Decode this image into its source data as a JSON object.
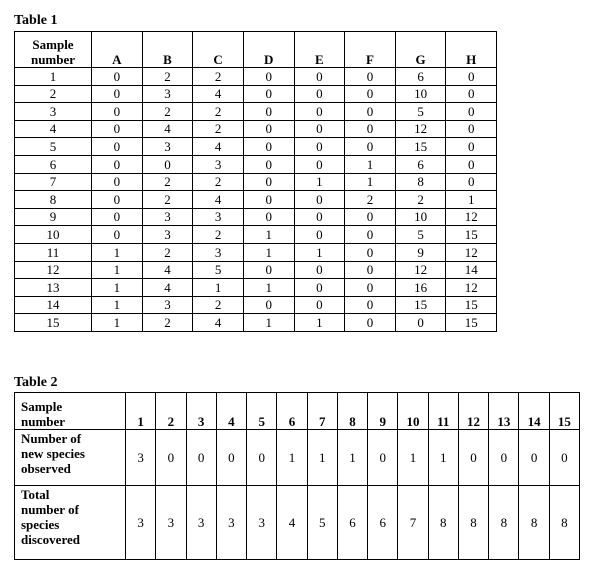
{
  "table1": {
    "caption": "Table 1",
    "header_sample_line1": "Sample",
    "header_sample_line2": "number",
    "columns": [
      "A",
      "B",
      "C",
      "D",
      "E",
      "F",
      "G",
      "H"
    ],
    "rows": [
      {
        "sample": "1",
        "values": [
          "0",
          "2",
          "2",
          "0",
          "0",
          "0",
          "6",
          "0"
        ]
      },
      {
        "sample": "2",
        "values": [
          "0",
          "3",
          "4",
          "0",
          "0",
          "0",
          "10",
          "0"
        ]
      },
      {
        "sample": "3",
        "values": [
          "0",
          "2",
          "2",
          "0",
          "0",
          "0",
          "5",
          "0"
        ]
      },
      {
        "sample": "4",
        "values": [
          "0",
          "4",
          "2",
          "0",
          "0",
          "0",
          "12",
          "0"
        ]
      },
      {
        "sample": "5",
        "values": [
          "0",
          "3",
          "4",
          "0",
          "0",
          "0",
          "15",
          "0"
        ]
      },
      {
        "sample": "6",
        "values": [
          "0",
          "0",
          "3",
          "0",
          "0",
          "1",
          "6",
          "0"
        ]
      },
      {
        "sample": "7",
        "values": [
          "0",
          "2",
          "2",
          "0",
          "1",
          "1",
          "8",
          "0"
        ]
      },
      {
        "sample": "8",
        "values": [
          "0",
          "2",
          "4",
          "0",
          "0",
          "2",
          "2",
          "1"
        ]
      },
      {
        "sample": "9",
        "values": [
          "0",
          "3",
          "3",
          "0",
          "0",
          "0",
          "10",
          "12"
        ]
      },
      {
        "sample": "10",
        "values": [
          "0",
          "3",
          "2",
          "1",
          "0",
          "0",
          "5",
          "15"
        ]
      },
      {
        "sample": "11",
        "values": [
          "1",
          "2",
          "3",
          "1",
          "1",
          "0",
          "9",
          "12"
        ]
      },
      {
        "sample": "12",
        "values": [
          "1",
          "4",
          "5",
          "0",
          "0",
          "0",
          "12",
          "14"
        ]
      },
      {
        "sample": "13",
        "values": [
          "1",
          "4",
          "1",
          "1",
          "0",
          "0",
          "16",
          "12"
        ]
      },
      {
        "sample": "14",
        "values": [
          "1",
          "3",
          "2",
          "0",
          "0",
          "0",
          "15",
          "15"
        ]
      },
      {
        "sample": "15",
        "values": [
          "1",
          "2",
          "4",
          "1",
          "1",
          "0",
          "0",
          "15"
        ]
      }
    ]
  },
  "table2": {
    "caption": "Table 2",
    "header_label_line1": "Sample",
    "header_label_line2": "number",
    "sample_numbers": [
      "1",
      "2",
      "3",
      "4",
      "5",
      "6",
      "7",
      "8",
      "9",
      "10",
      "11",
      "12",
      "13",
      "14",
      "15"
    ],
    "new_species_label_lines": [
      "Number of",
      "new species",
      "observed"
    ],
    "new_species": [
      "3",
      "0",
      "0",
      "0",
      "0",
      "1",
      "1",
      "1",
      "0",
      "1",
      "1",
      "0",
      "0",
      "0",
      "0"
    ],
    "total_label_lines": [
      "Total",
      "number of",
      "species",
      "discovered"
    ],
    "total_species": [
      "3",
      "3",
      "3",
      "3",
      "3",
      "4",
      "5",
      "6",
      "6",
      "7",
      "8",
      "8",
      "8",
      "8",
      "8"
    ]
  }
}
